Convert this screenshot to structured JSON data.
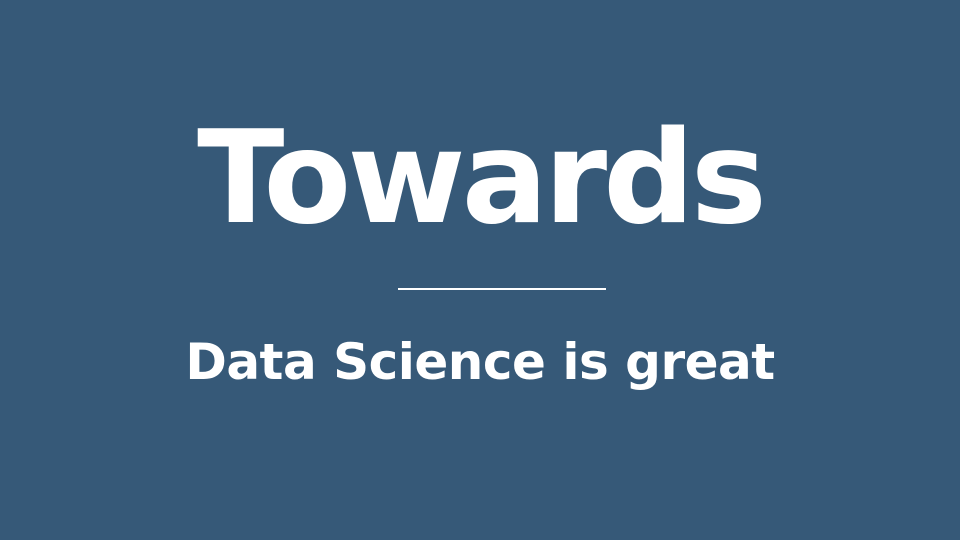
{
  "slide": {
    "title": "Towards",
    "subtitle": "Data Science is great",
    "colors": {
      "background": "#365978",
      "text": "#ffffff",
      "divider": "#ffffff"
    }
  }
}
